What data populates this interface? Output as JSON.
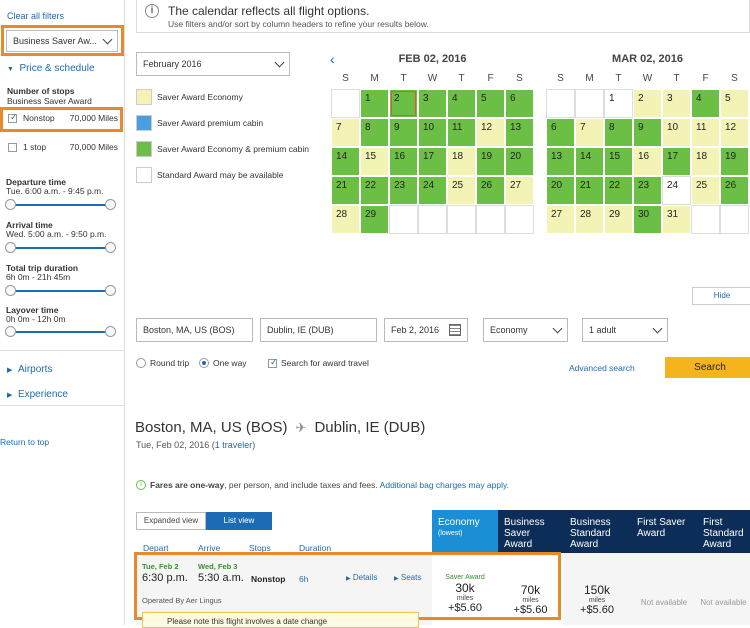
{
  "sidebar": {
    "clear_filters": "Clear all filters",
    "award_select": "Business Saver Aw...",
    "price_schedule": "Price & schedule",
    "stops_title": "Number of stops",
    "stops_sub": "Business Saver Award",
    "nonstop_label": "Nonstop",
    "nonstop_miles": "70,000 Miles",
    "onestop_label": "1 stop",
    "onestop_miles": "70,000 Miles",
    "departure_title": "Departure time",
    "departure_range": "Tue. 6:00 a.m. - 9:45 p.m.",
    "arrival_title": "Arrival time",
    "arrival_range": "Wed. 5:00 a.m. - 9:50 p.m.",
    "duration_title": "Total trip duration",
    "duration_range": "6h 0m - 21h 45m",
    "layover_title": "Layover time",
    "layover_range": "0h 0m - 12h 0m",
    "airports": "Airports",
    "experience": "Experience",
    "return_top": "Return to top"
  },
  "banner": {
    "title": "The calendar reflects all flight options.",
    "sub": "Use filters and/or sort by column headers to refine your results below."
  },
  "calendar": {
    "month_select": "February 2016",
    "legend": [
      "Saver Award Economy",
      "Saver Award premium cabin",
      "Saver Award Economy & premium cabin",
      "Standard Award may be available"
    ],
    "legend_colors": [
      "#f3f3b5",
      "#4a9fdc",
      "#6cbf45",
      "#ffffff"
    ],
    "month1": "FEB 02, 2016",
    "month2": "MAR 02, 2016",
    "dow": [
      "S",
      "M",
      "T",
      "W",
      "T",
      "F",
      "S"
    ],
    "hide": "Hide"
  },
  "search": {
    "from": "Boston, MA, US (BOS)",
    "to": "Dublin, IE (DUB)",
    "date": "Feb 2, 2016",
    "cabin": "Economy",
    "pax": "1 adult",
    "roundtrip": "Round trip",
    "oneway": "One way",
    "award": "Search for award travel",
    "advanced": "Advanced search",
    "search_btn": "Search"
  },
  "route": {
    "from": "Boston, MA, US (BOS)",
    "to": "Dublin, IE (DUB)",
    "date": "Tue, Feb 02, 2016 (",
    "travelers": "1 traveler",
    "date_end": ")"
  },
  "fares_note": {
    "bold": "Fares are one-way",
    "rest": ", per person, and include taxes and fees.",
    "link": "Additional bag charges may apply."
  },
  "views": {
    "expanded": "Expanded view",
    "list": "List view"
  },
  "columns": {
    "depart": "Depart",
    "arrive": "Arrive",
    "stops": "Stops",
    "duration": "Duration"
  },
  "fare_columns": [
    {
      "name": "Economy",
      "sub": "(lowest)",
      "color": "#1b8fd6"
    },
    {
      "name": "Business Saver Award",
      "sub": "",
      "color": "#0c2d57"
    },
    {
      "name": "Business Standard Award",
      "sub": "",
      "color": "#0c2d57"
    },
    {
      "name": "First Saver Award",
      "sub": "",
      "color": "#0c2d57"
    },
    {
      "name": "First Standard Award",
      "sub": "",
      "color": "#0c2d57"
    }
  ],
  "flight": {
    "dep_date": "Tue, Feb 2",
    "arr_date": "Wed, Feb 3",
    "dep_time": "6:30 p.m.",
    "arr_time": "5:30 a.m.",
    "stops": "Nonstop",
    "duration": "6h",
    "details": "Details",
    "seats": "Seats",
    "operated": "Operated By Aer Lingus",
    "note": "Please note this flight involves a date change",
    "econ_label": "Saver Award",
    "econ_miles": "30k",
    "econ_unit": "miles",
    "econ_tax": "+$5.60",
    "bus_miles": "70k",
    "bus_unit": "miles",
    "bus_tax": "+$5.60",
    "bstd_miles": "150k",
    "bstd_unit": "miles",
    "bstd_tax": "+$5.60",
    "na1": "Not available",
    "na2": "Not available"
  }
}
